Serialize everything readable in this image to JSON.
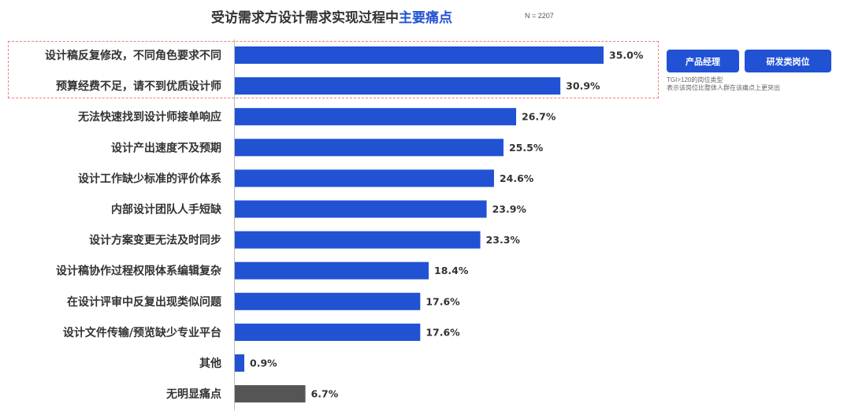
{
  "header": {
    "title_main": "受访需求方设计需求实现过程中",
    "title_accent": "主要痛点",
    "sample_size": "N = 2207"
  },
  "legend": {
    "tags": [
      "产品经理",
      "研发类岗位"
    ],
    "note_line1": "TGI>120的岗位类型",
    "note_line2": "表示该岗位比整体人群在该痛点上更突出"
  },
  "chart_data": {
    "type": "bar",
    "orientation": "horizontal",
    "title": "受访需求方设计需求实现过程中主要痛点",
    "categories": [
      "设计稿反复修改，不同角色要求不同",
      "预算经费不足，请不到优质设计师",
      "无法快速找到设计师接单响应",
      "设计产出速度不及预期",
      "设计工作缺少标准的评价体系",
      "内部设计团队人手短缺",
      "设计方案变更无法及时同步",
      "设计稿协作过程权限体系编辑复杂",
      "在设计评审中反复出现类似问题",
      "设计文件传输/预览缺少专业平台",
      "其他",
      "无明显痛点"
    ],
    "values": [
      35.0,
      30.9,
      26.7,
      25.5,
      24.6,
      23.9,
      23.3,
      18.4,
      17.6,
      17.6,
      0.9,
      6.7
    ],
    "value_labels": [
      "35.0%",
      "30.9%",
      "26.7%",
      "25.5%",
      "24.6%",
      "23.9%",
      "23.3%",
      "18.4%",
      "17.6%",
      "17.6%",
      "0.9%",
      "6.7%"
    ],
    "colors": [
      "#2152d4",
      "#2152d4",
      "#2152d4",
      "#2152d4",
      "#2152d4",
      "#2152d4",
      "#2152d4",
      "#2152d4",
      "#2152d4",
      "#2152d4",
      "#2152d4",
      "#555555"
    ],
    "xlim": [
      0,
      35
    ],
    "highlighted": [
      0,
      1
    ],
    "grid": false,
    "legend_position": "right"
  }
}
